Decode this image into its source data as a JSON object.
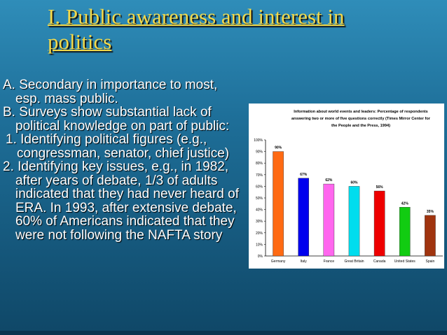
{
  "slide": {
    "title_lines": [
      "I.  Public awareness and interest in",
      "politics"
    ],
    "bullets": [
      {
        "text": "A.  Secondary in importance to most, esp. mass public."
      },
      {
        "text": "B.  Surveys show substantial lack of political knowledge on part of public:"
      },
      {
        "text": " 1.  Identifying political figures (e.g., congressman, senator, chief justice)"
      },
      {
        "text": "2.  Identifying key issues, e.g., in 1982, after years of debate, 1/3 of adults indicated that they had never heard of ERA.  In 1993, after extensive debate, 60% of Americans indicated that they were not following the NAFTA story"
      }
    ]
  },
  "chart_data": {
    "type": "bar",
    "title_lines": [
      "Information about world events and leaders: Percentage of respondents",
      "answering two or more of five questions correctly (Times Mirror Center for",
      "the People and the Press, 1994)"
    ],
    "categories": [
      "Germany",
      "Italy",
      "France",
      "Great Britain",
      "Canada",
      "United States",
      "Spain"
    ],
    "values": [
      90,
      67,
      62,
      60,
      56,
      42,
      35
    ],
    "value_labels": [
      "90%",
      "67%",
      "62%",
      "60%",
      "56%",
      "42%",
      "35%"
    ],
    "bar_colors": [
      "#ff6a13",
      "#0000ee",
      "#ff66ee",
      "#00ddee",
      "#ee0000",
      "#11cc11",
      "#a0340f"
    ],
    "ylim": [
      0,
      100
    ],
    "yticks": [
      0,
      10,
      20,
      30,
      40,
      50,
      60,
      70,
      80,
      90,
      100
    ],
    "ytick_labels": [
      "0%",
      "10%",
      "20%",
      "30%",
      "40%",
      "50%",
      "60%",
      "70%",
      "80%",
      "90%",
      "100%"
    ],
    "xlabel": "",
    "ylabel": "",
    "grid": false
  }
}
